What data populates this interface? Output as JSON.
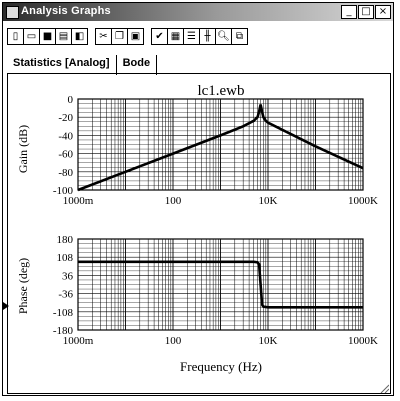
{
  "window": {
    "title": "Analysis Graphs",
    "controls": {
      "minimize": "_",
      "maximize": "□",
      "close": "×"
    }
  },
  "toolbar": {
    "groups": [
      [
        "new-icon",
        "open-icon",
        "save-icon",
        "print-icon",
        "print-preview-icon"
      ],
      [
        "cut-icon",
        "copy-icon",
        "paste-icon"
      ],
      [
        "properties-icon",
        "grid-icon",
        "legend-icon",
        "cursors-icon",
        "zoom-icon",
        "restore-icon"
      ]
    ]
  },
  "tabs": [
    {
      "label": "Statistics [Analog]",
      "active": false
    },
    {
      "label": "Bode",
      "active": true
    }
  ],
  "chart_data": [
    {
      "type": "line",
      "title": "lc1.ewb",
      "xlabel": "",
      "ylabel": "Gain (dB)",
      "xscale": "log",
      "xlim": [
        1,
        1000000
      ],
      "ylim": [
        -100,
        0
      ],
      "xticks": [
        "1000m",
        "100",
        "10K",
        "1000K"
      ],
      "yticks": [
        "0",
        "-20",
        "-40",
        "-60",
        "-80",
        "-100"
      ],
      "grid": true,
      "series": [
        {
          "x": [
            1,
            10,
            100,
            1000,
            3000,
            5000,
            6000,
            6500,
            7000,
            7500,
            8000,
            9000,
            10000,
            100000,
            1000000
          ],
          "y": [
            -100,
            -80,
            -60,
            -40,
            -30,
            -24,
            -20,
            -14,
            -6,
            -14,
            -20,
            -24,
            -26,
            -52,
            -76
          ]
        }
      ]
    },
    {
      "type": "line",
      "title": "",
      "xlabel": "Frequency (Hz)",
      "ylabel": "Phase (deg)",
      "xscale": "log",
      "xlim": [
        1,
        1000000
      ],
      "ylim": [
        -180,
        180
      ],
      "xticks": [
        "1000m",
        "100",
        "10K",
        "1000K"
      ],
      "yticks": [
        "180",
        "108",
        "36",
        "-36",
        "-108",
        "-180"
      ],
      "grid": true,
      "series": [
        {
          "x": [
            1,
            1000,
            5000,
            6000,
            6500,
            7000,
            7500,
            8000,
            10000,
            100000,
            1000000
          ],
          "y": [
            90,
            90,
            90,
            88,
            80,
            0,
            -80,
            -88,
            -90,
            -90,
            -90
          ]
        }
      ]
    }
  ]
}
